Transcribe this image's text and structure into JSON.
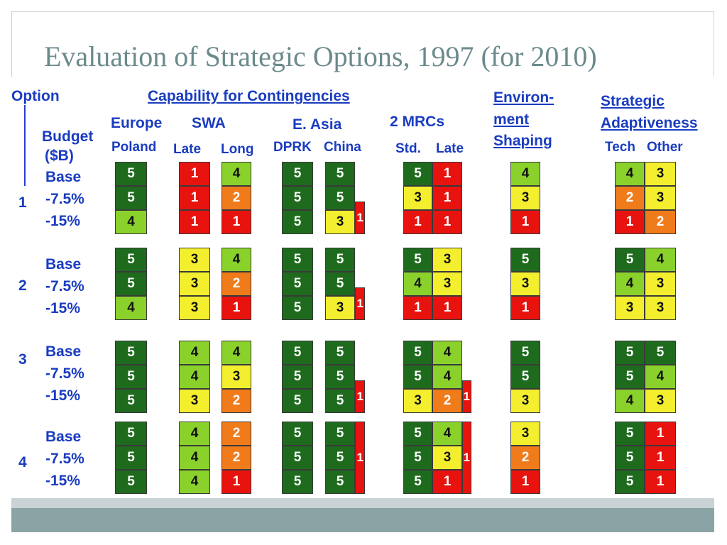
{
  "title": "Evaluation of Strategic Options, 1997 (for 2010)",
  "colors": {
    "1": "#e8130f",
    "2": "#f07b1b",
    "3": "#f3ef2e",
    "4": "#8ad12c",
    "5": "#1e6b1e"
  },
  "headers": {
    "option": "Option",
    "budget_1": "Budget",
    "budget_2": "($B)",
    "capability": "Capability for Contingencies",
    "europe": "Europe",
    "poland": "Poland",
    "swa": "SWA",
    "late": "Late",
    "long": "Long",
    "east_asia": "E. Asia",
    "dprk": "DPRK",
    "china": "China",
    "mrcs": "2 MRCs",
    "std": "Std.",
    "late2": "Late",
    "env_1": "Environ-",
    "env_2": "ment",
    "env_3": "Shaping",
    "strat_1": "Strategic",
    "strat_2": "Adaptiveness",
    "tech": "Tech",
    "other": "Other"
  },
  "budget_levels": [
    "Base",
    "-7.5%",
    "-15%"
  ],
  "options": [
    {
      "label": "1",
      "rows": [
        {
          "poland": "5",
          "swa_late": "1",
          "swa_long": "4",
          "dprk": "5",
          "china": "5",
          "mrc_std": "5",
          "mrc_late": "1",
          "env": "4",
          "tech": "4",
          "other": "3"
        },
        {
          "poland": "5",
          "swa_late": "1",
          "swa_long": "2",
          "dprk": "5",
          "china": "5",
          "mrc_std": "3",
          "mrc_late": "1",
          "env": "3",
          "tech": "2",
          "other": "3"
        },
        {
          "poland": "4",
          "swa_late": "1",
          "swa_long": "1",
          "dprk": "5",
          "china": "3",
          "mrc_std": "1",
          "mrc_late": "1",
          "env": "1",
          "tech": "1",
          "other": "2"
        }
      ],
      "china_bar": "1",
      "mrc_bar": null
    },
    {
      "label": "2",
      "rows": [
        {
          "poland": "5",
          "swa_late": "3",
          "swa_long": "4",
          "dprk": "5",
          "china": "5",
          "mrc_std": "5",
          "mrc_late": "3",
          "env": "5",
          "tech": "5",
          "other": "4"
        },
        {
          "poland": "5",
          "swa_late": "3",
          "swa_long": "2",
          "dprk": "5",
          "china": "5",
          "mrc_std": "4",
          "mrc_late": "3",
          "env": "3",
          "tech": "4",
          "other": "3"
        },
        {
          "poland": "4",
          "swa_late": "3",
          "swa_long": "1",
          "dprk": "5",
          "china": "3",
          "mrc_std": "1",
          "mrc_late": "1",
          "env": "1",
          "tech": "3",
          "other": "3"
        }
      ],
      "china_bar": "1",
      "mrc_bar": null
    },
    {
      "label": "3",
      "rows": [
        {
          "poland": "5",
          "swa_late": "4",
          "swa_long": "4",
          "dprk": "5",
          "china": "5",
          "mrc_std": "5",
          "mrc_late": "4",
          "env": "5",
          "tech": "5",
          "other": "5"
        },
        {
          "poland": "5",
          "swa_late": "4",
          "swa_long": "3",
          "dprk": "5",
          "china": "5",
          "mrc_std": "5",
          "mrc_late": "4",
          "env": "5",
          "tech": "5",
          "other": "4"
        },
        {
          "poland": "5",
          "swa_late": "3",
          "swa_long": "2",
          "dprk": "5",
          "china": "5",
          "mrc_std": "3",
          "mrc_late": "2",
          "env": "3",
          "tech": "4",
          "other": "3"
        }
      ],
      "china_bar": "1",
      "mrc_bar": "1"
    },
    {
      "label": "4",
      "rows": [
        {
          "poland": "5",
          "swa_late": "4",
          "swa_long": "2",
          "dprk": "5",
          "china": "5",
          "mrc_std": "5",
          "mrc_late": "4",
          "env": "3",
          "tech": "5",
          "other": "1"
        },
        {
          "poland": "5",
          "swa_late": "4",
          "swa_long": "2",
          "dprk": "5",
          "china": "5",
          "mrc_std": "5",
          "mrc_late": "3",
          "env": "2",
          "tech": "5",
          "other": "1"
        },
        {
          "poland": "5",
          "swa_late": "4",
          "swa_long": "1",
          "dprk": "5",
          "china": "5",
          "mrc_std": "5",
          "mrc_late": "1",
          "env": "1",
          "tech": "5",
          "other": "1"
        }
      ],
      "china_bar": "1",
      "mrc_bar": "1"
    }
  ]
}
